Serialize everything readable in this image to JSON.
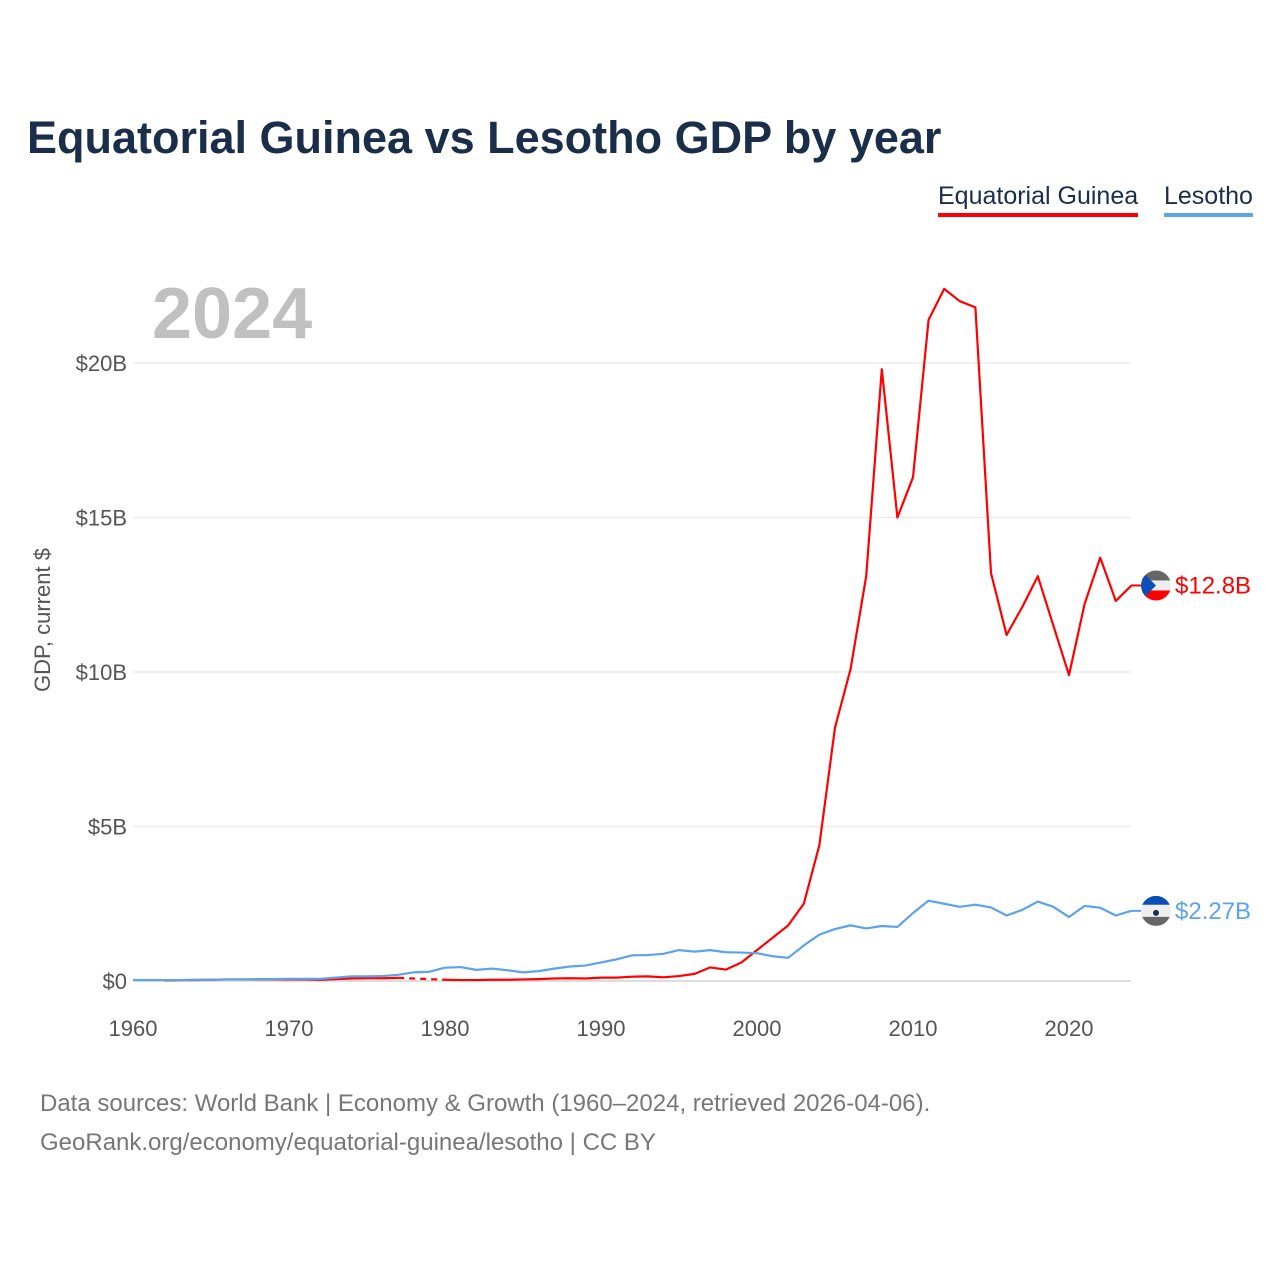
{
  "chart_data": {
    "type": "line",
    "title": "Equatorial Guinea vs Lesotho GDP by year",
    "xlabel": "",
    "ylabel": "GDP, current $",
    "year_label": "2024",
    "xlim": [
      1960,
      2024
    ],
    "ylim": [
      0,
      23
    ],
    "x_ticks": [
      1960,
      1970,
      1980,
      1990,
      2000,
      2010,
      2020
    ],
    "x_tick_labels": [
      "1960",
      "1970",
      "1980",
      "1990",
      "2000",
      "2010",
      "2020"
    ],
    "y_ticks": [
      0,
      5,
      10,
      15,
      20
    ],
    "y_tick_labels": [
      "$0",
      "$5B",
      "$10B",
      "$15B",
      "$20B"
    ],
    "grid": true,
    "legend": "top-right",
    "units": "billions USD",
    "x": [
      1960,
      1961,
      1962,
      1963,
      1964,
      1965,
      1966,
      1967,
      1968,
      1969,
      1970,
      1971,
      1972,
      1973,
      1974,
      1975,
      1976,
      1977,
      1978,
      1979,
      1980,
      1981,
      1982,
      1983,
      1984,
      1985,
      1986,
      1987,
      1988,
      1989,
      1990,
      1991,
      1992,
      1993,
      1994,
      1995,
      1996,
      1997,
      1998,
      1999,
      2000,
      2001,
      2002,
      2003,
      2004,
      2005,
      2006,
      2007,
      2008,
      2009,
      2010,
      2011,
      2012,
      2013,
      2014,
      2015,
      2016,
      2017,
      2018,
      2019,
      2020,
      2021,
      2022,
      2023,
      2024
    ],
    "series": [
      {
        "name": "Equatorial Guinea",
        "color": "#ff0000",
        "end_label": "$12.8B",
        "flag": "equatorial-guinea-flag",
        "values": [
          null,
          null,
          0.02,
          0.03,
          0.03,
          0.04,
          0.05,
          0.05,
          0.05,
          0.05,
          0.05,
          0.05,
          0.04,
          0.06,
          0.08,
          0.09,
          0.09,
          0.1,
          null,
          null,
          0.04,
          0.03,
          0.03,
          0.04,
          0.04,
          0.05,
          0.06,
          0.08,
          0.09,
          0.08,
          0.11,
          0.11,
          0.14,
          0.15,
          0.12,
          0.16,
          0.23,
          0.44,
          0.37,
          0.6,
          1.0,
          1.4,
          1.8,
          2.5,
          4.4,
          8.2,
          10.1,
          13.1,
          19.8,
          15.0,
          16.3,
          21.4,
          22.4,
          22.0,
          21.8,
          13.2,
          11.2,
          12.1,
          13.1,
          11.5,
          9.9,
          12.2,
          13.7,
          12.3,
          12.8
        ]
      },
      {
        "name": "Lesotho",
        "color": "#5ba3ea",
        "end_label": "$2.27B",
        "flag": "lesotho-flag",
        "values": [
          0.03,
          0.03,
          0.03,
          0.03,
          0.04,
          0.04,
          0.05,
          0.05,
          0.06,
          0.06,
          0.07,
          0.07,
          0.07,
          0.11,
          0.15,
          0.15,
          0.16,
          0.2,
          0.28,
          0.3,
          0.43,
          0.45,
          0.36,
          0.4,
          0.35,
          0.28,
          0.32,
          0.4,
          0.47,
          0.5,
          0.6,
          0.7,
          0.83,
          0.84,
          0.88,
          1.0,
          0.95,
          1.0,
          0.93,
          0.92,
          0.9,
          0.8,
          0.75,
          1.15,
          1.5,
          1.68,
          1.8,
          1.7,
          1.78,
          1.75,
          2.2,
          2.6,
          2.5,
          2.4,
          2.47,
          2.38,
          2.12,
          2.3,
          2.57,
          2.4,
          2.07,
          2.43,
          2.37,
          2.12,
          2.27
        ]
      }
    ]
  },
  "source_line1": "Data sources: World Bank | Economy & Growth (1960–2024, retrieved 2026-04-06).",
  "source_line2": "GeoRank.org/economy/equatorial-guinea/lesotho | CC BY"
}
